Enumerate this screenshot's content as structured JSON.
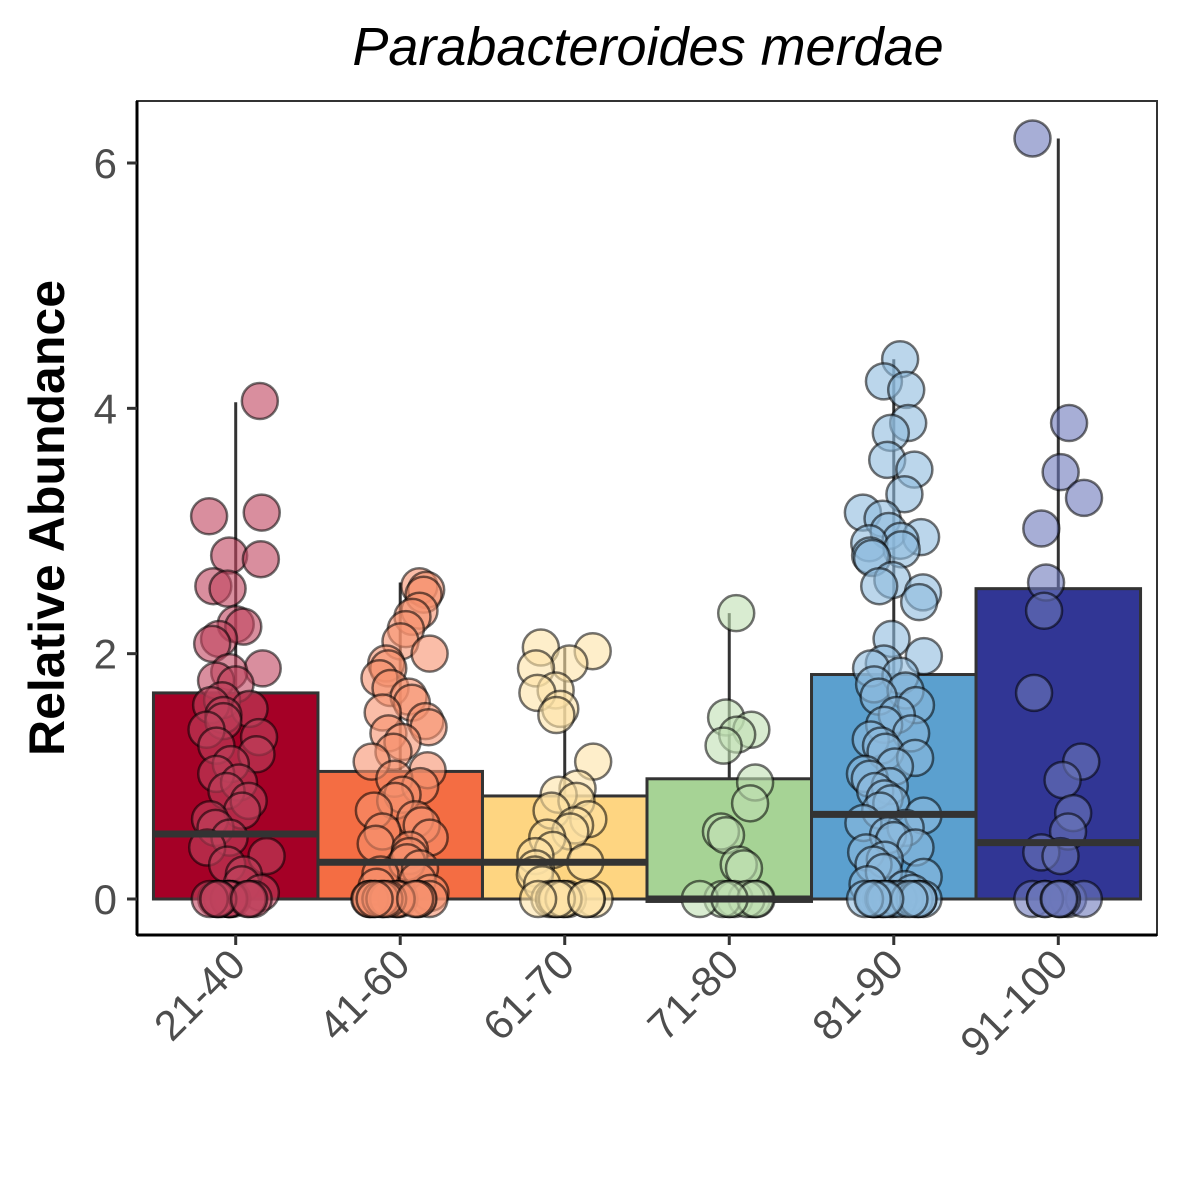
{
  "chart_data": {
    "type": "box",
    "title": "Parabacteroides merdae",
    "xlabel": "",
    "ylabel": "Relative Abundance",
    "ylim": [
      -0.3,
      6.5
    ],
    "yticks": [
      0,
      2,
      4,
      6
    ],
    "categories": [
      "21-40",
      "41-60",
      "61-70",
      "71-80",
      "81-90",
      "91-100"
    ],
    "colors": [
      "#a50026",
      "#f46d43",
      "#fed581",
      "#a6d395",
      "#5ba0cf",
      "#313695"
    ],
    "point_colors": [
      "#c0435e",
      "#f7916e",
      "#fee3a6",
      "#bfe0b3",
      "#8ebbdd",
      "#6d78bb"
    ],
    "boxes": [
      {
        "category": "21-40",
        "q1": 0,
        "median": 0.53,
        "q3": 1.68,
        "whisker_low": 0,
        "whisker_high": 4.05
      },
      {
        "category": "41-60",
        "q1": 0,
        "median": 0.3,
        "q3": 1.04,
        "whisker_low": 0,
        "whisker_high": 2.58
      },
      {
        "category": "61-70",
        "q1": 0,
        "median": 0.3,
        "q3": 0.84,
        "whisker_low": 0,
        "whisker_high": 2.05
      },
      {
        "category": "71-80",
        "q1": -0.02,
        "median": 0,
        "q3": 0.98,
        "whisker_low": -0.02,
        "whisker_high": 2.33
      },
      {
        "category": "81-90",
        "q1": 0,
        "median": 0.69,
        "q3": 1.83,
        "whisker_low": 0,
        "whisker_high": 4.4
      },
      {
        "category": "91-100",
        "q1": 0,
        "median": 0.46,
        "q3": 2.53,
        "whisker_low": 0,
        "whisker_high": 6.2
      }
    ],
    "points": [
      {
        "category": "21-40",
        "values": [
          4.06,
          3.15,
          3.12,
          2.8,
          2.77,
          2.55,
          2.53,
          2.24,
          2.22,
          2.12,
          2.08,
          1.88,
          1.85,
          1.78,
          1.75,
          1.62,
          1.58,
          1.55,
          1.5,
          1.45,
          1.38,
          1.32,
          1.25,
          1.18,
          1.1,
          1.02,
          0.95,
          0.88,
          0.8,
          0.72,
          0.65,
          0.58,
          0.5,
          0.42,
          0.35,
          0.28,
          0.2,
          0.12,
          0.05,
          0,
          0,
          0,
          0,
          0,
          0,
          0,
          0,
          0,
          0,
          0,
          0,
          0
        ]
      },
      {
        "category": "41-60",
        "values": [
          2.55,
          2.52,
          2.48,
          2.35,
          2.3,
          2.2,
          2.1,
          2.0,
          1.92,
          1.88,
          1.8,
          1.72,
          1.65,
          1.6,
          1.52,
          1.45,
          1.4,
          1.35,
          1.28,
          1.2,
          1.12,
          1.05,
          0.98,
          0.92,
          0.85,
          0.8,
          0.72,
          0.65,
          0.6,
          0.55,
          0.5,
          0.45,
          0.4,
          0.35,
          0.3,
          0.25,
          0.2,
          0.15,
          0.1,
          0.05,
          0,
          0,
          0,
          0,
          0,
          0,
          0,
          0,
          0,
          0,
          0,
          0,
          0,
          0,
          0,
          0
        ]
      },
      {
        "category": "61-70",
        "values": [
          2.05,
          2.02,
          1.92,
          1.88,
          1.7,
          1.68,
          1.55,
          1.5,
          1.12,
          0.9,
          0.85,
          0.8,
          0.72,
          0.65,
          0.6,
          0.55,
          0.5,
          0.4,
          0.35,
          0.3,
          0.25,
          0.2,
          0.12,
          0,
          0,
          0,
          0,
          0,
          0,
          0,
          0,
          0,
          0,
          0
        ]
      },
      {
        "category": "71-80",
        "values": [
          2.33,
          1.48,
          1.38,
          1.34,
          1.25,
          0.95,
          0.78,
          0.55,
          0.52,
          0.28,
          0.25,
          0,
          0,
          0,
          0,
          0,
          0,
          0,
          0,
          0
        ]
      },
      {
        "category": "81-90",
        "values": [
          4.4,
          4.22,
          4.15,
          3.88,
          3.8,
          3.58,
          3.5,
          3.3,
          3.15,
          3.1,
          3.0,
          2.95,
          2.92,
          2.9,
          2.85,
          2.8,
          2.78,
          2.6,
          2.55,
          2.5,
          2.42,
          2.12,
          1.98,
          1.92,
          1.88,
          1.82,
          1.75,
          1.7,
          1.65,
          1.58,
          1.5,
          1.42,
          1.35,
          1.3,
          1.25,
          1.2,
          1.15,
          1.08,
          1.02,
          0.98,
          0.92,
          0.88,
          0.82,
          0.78,
          0.72,
          0.68,
          0.62,
          0.58,
          0.52,
          0.48,
          0.42,
          0.38,
          0.32,
          0.28,
          0.22,
          0.18,
          0.12,
          0.08,
          0.05,
          0,
          0,
          0,
          0,
          0,
          0,
          0,
          0,
          0,
          0,
          0,
          0,
          0,
          0,
          0,
          0,
          0
        ]
      },
      {
        "category": "91-100",
        "values": [
          6.2,
          3.88,
          3.48,
          3.27,
          3.02,
          2.58,
          2.35,
          1.68,
          1.12,
          0.97,
          0.7,
          0.55,
          0.38,
          0.35,
          0,
          0,
          0,
          0,
          0,
          0,
          0,
          0
        ]
      }
    ]
  }
}
